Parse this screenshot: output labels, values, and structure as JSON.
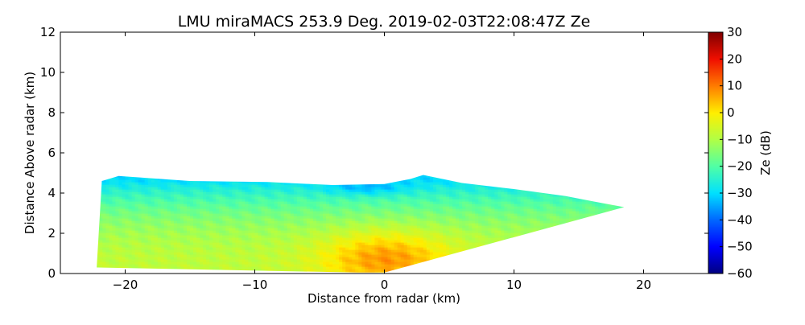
{
  "chart_data": {
    "type": "heatmap",
    "title": "LMU miraMACS 253.9 Deg. 2019-02-03T22:08:47Z  Ze",
    "xlabel": "Distance from radar (km)",
    "ylabel": "Distance Above radar  (km)",
    "xlim": [
      -25,
      25
    ],
    "ylim": [
      0,
      12
    ],
    "xticks": [
      -20,
      -10,
      0,
      10,
      20
    ],
    "xtick_labels": [
      "−20",
      "−10",
      "0",
      "10",
      "20"
    ],
    "yticks": [
      0,
      2,
      4,
      6,
      8,
      10,
      12
    ],
    "ytick_labels": [
      "0",
      "2",
      "4",
      "6",
      "8",
      "10",
      "12"
    ],
    "colorbar": {
      "label": "Ze (dB)",
      "range": [
        -60,
        30
      ],
      "ticks": [
        30,
        20,
        10,
        0,
        -10,
        -20,
        -30,
        -40,
        -50,
        -60
      ],
      "tick_labels": [
        "30",
        "20",
        "10",
        "0",
        "−10",
        "−20",
        "−30",
        "−40",
        "−50",
        "−60"
      ],
      "colormap": "jet"
    },
    "echo_region": {
      "description_units": "km",
      "outline": [
        [
          -22.2,
          0.3
        ],
        [
          -21.8,
          4.6
        ],
        [
          -20.5,
          4.85
        ],
        [
          -15,
          4.6
        ],
        [
          -9,
          4.55
        ],
        [
          -4,
          4.4
        ],
        [
          0,
          4.45
        ],
        [
          2,
          4.7
        ],
        [
          3,
          4.9
        ],
        [
          6,
          4.5
        ],
        [
          10,
          4.2
        ],
        [
          14,
          3.85
        ],
        [
          16,
          3.6
        ],
        [
          18.5,
          3.3
        ],
        [
          0,
          0.05
        ],
        [
          -2,
          0.05
        ]
      ],
      "base_reflectivity_dB": -8,
      "core": {
        "x": 0,
        "y": 0.7,
        "max_dB": 8
      },
      "top_reflectivity_dB": -30,
      "top_minimum": {
        "x": -1.5,
        "y": 4.2,
        "min_dB": -37
      }
    },
    "colors": {
      "c_-60": "#00007f",
      "c_-50": "#0000ff",
      "c_-40": "#0066ff",
      "c_-30": "#00e0ff",
      "c_-20": "#50ffa5",
      "c_-10": "#b0ff46",
      "c_0": "#ffee00",
      "c_10": "#ff7c00",
      "c_20": "#f00f00",
      "c_30": "#800000"
    }
  }
}
